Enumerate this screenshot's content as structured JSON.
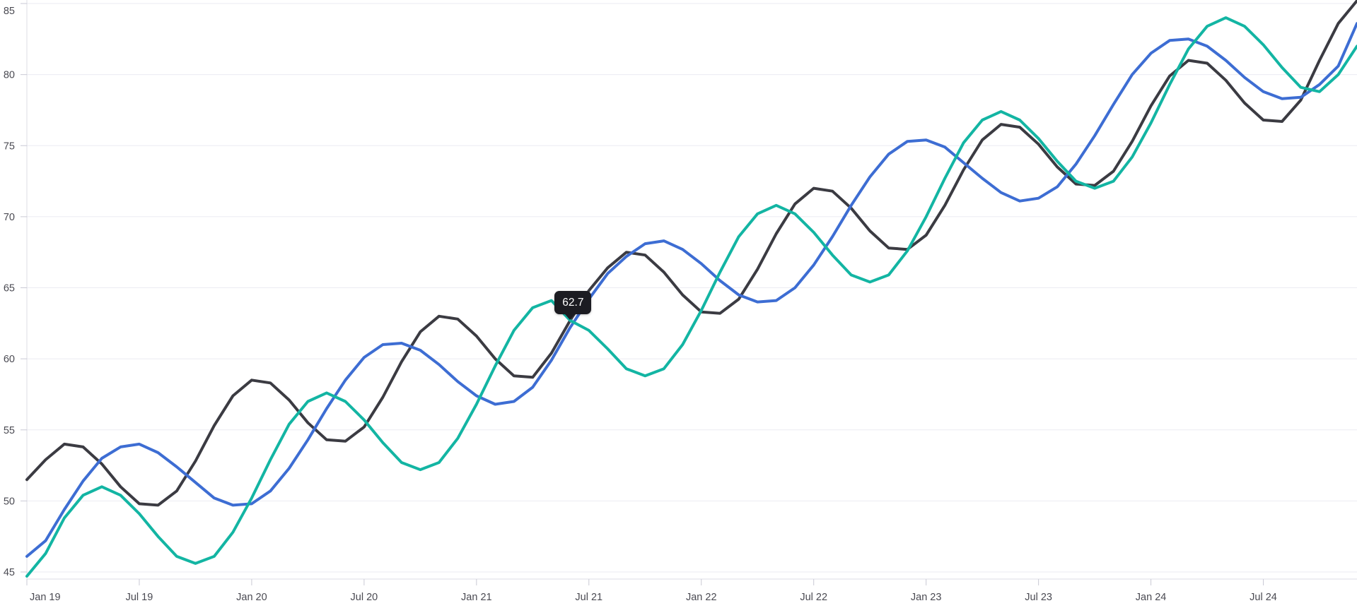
{
  "chart_data": {
    "type": "line",
    "title": "",
    "legend": "none",
    "grid": "horizontal-only",
    "x_axis": {
      "start": "Jan 19",
      "interval": "monthly",
      "point_count": 72,
      "tick_labels": [
        "Jan 19",
        "Jul 19",
        "Jan 20",
        "Jul 20",
        "Jan 21",
        "Jul 21",
        "Jan 22",
        "Jul 22",
        "Jan 23",
        "Jul 23",
        "Jan 24",
        "Jul 24"
      ],
      "tick_month_indices": [
        0,
        6,
        12,
        18,
        24,
        30,
        36,
        42,
        48,
        54,
        60,
        66
      ]
    },
    "y_axis": {
      "min": 45,
      "max": 85,
      "tick_step": 5,
      "tick_labels": [
        "45",
        "50",
        "55",
        "60",
        "65",
        "70",
        "75",
        "80",
        "85"
      ],
      "tick_values": [
        45,
        50,
        55,
        60,
        65,
        70,
        75,
        80,
        85
      ]
    },
    "series": [
      {
        "name": "dark",
        "color": "#3b3b42",
        "values": [
          51.5,
          52.9,
          54.0,
          53.8,
          52.6,
          51.0,
          49.8,
          49.7,
          50.7,
          52.8,
          55.3,
          57.4,
          58.5,
          58.3,
          57.1,
          55.5,
          54.3,
          54.2,
          55.2,
          57.3,
          59.8,
          61.9,
          63.0,
          62.8,
          61.6,
          60.0,
          58.8,
          58.7,
          60.4,
          62.7,
          64.8,
          66.4,
          67.5,
          67.3,
          66.1,
          64.5,
          63.3,
          63.2,
          64.2,
          66.3,
          68.8,
          70.9,
          72.0,
          71.8,
          70.6,
          69.0,
          67.8,
          67.7,
          68.7,
          70.8,
          73.3,
          75.4,
          76.5,
          76.3,
          75.1,
          73.5,
          72.3,
          72.2,
          73.2,
          75.3,
          77.8,
          79.9,
          81.0,
          80.8,
          79.6,
          78.0,
          76.8,
          76.7,
          78.2,
          81.0,
          83.6,
          85.2
        ]
      },
      {
        "name": "blue",
        "color": "#3d6dd3",
        "values": [
          46.1,
          47.2,
          49.4,
          51.4,
          53.0,
          53.8,
          54.0,
          53.4,
          52.4,
          51.3,
          50.2,
          49.7,
          49.8,
          50.7,
          52.3,
          54.3,
          56.5,
          58.5,
          60.1,
          61.0,
          61.1,
          60.6,
          59.6,
          58.4,
          57.4,
          56.8,
          57.0,
          58.0,
          59.9,
          62.2,
          64.2,
          66.0,
          67.2,
          68.1,
          68.3,
          67.7,
          66.7,
          65.5,
          64.5,
          64.0,
          64.1,
          65.0,
          66.6,
          68.6,
          70.8,
          72.8,
          74.4,
          75.3,
          75.4,
          74.9,
          73.8,
          72.7,
          71.7,
          71.1,
          71.3,
          72.1,
          73.7,
          75.7,
          77.9,
          80.0,
          81.5,
          82.4,
          82.5,
          82.0,
          81.0,
          79.8,
          78.8,
          78.3,
          78.4,
          79.3,
          80.6,
          83.6
        ]
      },
      {
        "name": "teal",
        "color": "#13b5a3",
        "values": [
          44.7,
          46.3,
          48.8,
          50.4,
          51.0,
          50.4,
          49.1,
          47.5,
          46.1,
          45.6,
          46.1,
          47.8,
          50.2,
          52.9,
          55.4,
          57.0,
          57.6,
          57.0,
          55.7,
          54.1,
          52.7,
          52.2,
          52.7,
          54.4,
          56.8,
          59.5,
          62.0,
          63.6,
          64.1,
          62.7,
          62.0,
          60.7,
          59.3,
          58.8,
          59.3,
          61.0,
          63.4,
          66.1,
          68.6,
          70.2,
          70.8,
          70.2,
          68.9,
          67.3,
          65.9,
          65.4,
          65.9,
          67.6,
          70.0,
          72.7,
          75.2,
          76.8,
          77.4,
          76.8,
          75.5,
          73.9,
          72.5,
          72.0,
          72.5,
          74.2,
          76.6,
          79.3,
          81.8,
          83.4,
          84.0,
          83.4,
          82.1,
          80.5,
          79.1,
          78.8,
          80.0,
          82.0
        ]
      }
    ]
  },
  "tooltip": {
    "value": "62.7",
    "series": "dark",
    "month_index": 29,
    "bg_color": "#1c1c22",
    "text_color": "#ffffff"
  },
  "style": {
    "background": "#ffffff",
    "grid_color": "#ebebf2",
    "axis_color": "#dcdce4",
    "tick_color": "#c9c9d4",
    "label_color": "#4a4a52"
  }
}
